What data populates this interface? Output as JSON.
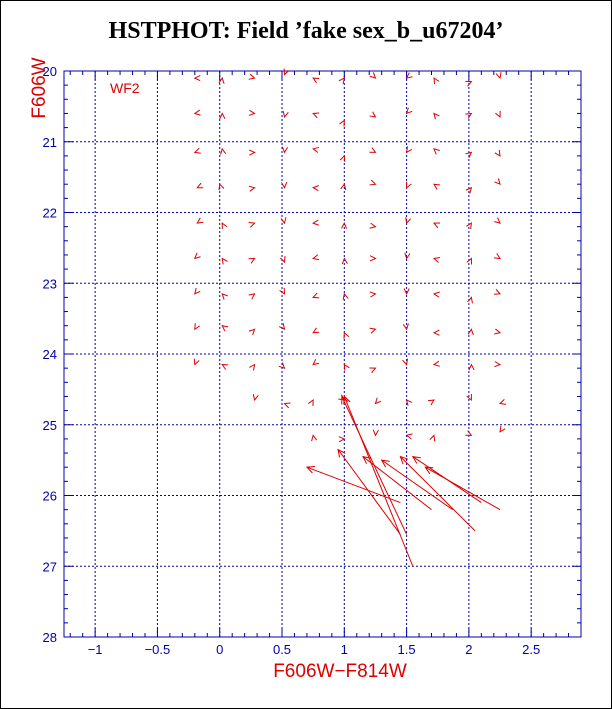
{
  "chart_data": {
    "type": "vector-plot",
    "title": "HSTPHOT: Field ’fake sex_b_u67204’",
    "xlabel": "F606W−F814W",
    "ylabel": "F606W",
    "panel_label": "WF2",
    "xlim": [
      -1.25,
      2.9
    ],
    "ylim": [
      28,
      20
    ],
    "y_axis_inverted": true,
    "x_ticks": [
      -1,
      -0.5,
      0,
      0.5,
      1,
      1.5,
      2,
      2.5
    ],
    "x_tick_labels": [
      "−1",
      "−0.5",
      "0",
      "0.5",
      "1",
      "1.5",
      "2",
      "2.5"
    ],
    "y_ticks": [
      20,
      21,
      22,
      23,
      24,
      25,
      26,
      27,
      28
    ],
    "y_tick_labels": [
      "20",
      "21",
      "22",
      "23",
      "24",
      "25",
      "26",
      "27",
      "28"
    ],
    "grid": true,
    "colors": {
      "axis": "#0000aa",
      "data": "#dd0000",
      "label": "#dd0000",
      "title": "#000000"
    },
    "short_vectors": [
      {
        "x": -0.2,
        "y": 20.1
      },
      {
        "x": 0.02,
        "y": 20.1
      },
      {
        "x": 0.28,
        "y": 20.1
      },
      {
        "x": 0.52,
        "y": 20.05
      },
      {
        "x": 0.75,
        "y": 20.1
      },
      {
        "x": 1.0,
        "y": 20.1
      },
      {
        "x": 1.25,
        "y": 20.1
      },
      {
        "x": 1.5,
        "y": 20.1
      },
      {
        "x": 1.72,
        "y": 20.1
      },
      {
        "x": 2.02,
        "y": 20.15
      },
      {
        "x": 2.25,
        "y": 20.1
      },
      {
        "x": -0.2,
        "y": 20.6
      },
      {
        "x": 0.02,
        "y": 20.6
      },
      {
        "x": 0.28,
        "y": 20.6
      },
      {
        "x": 0.52,
        "y": 20.65
      },
      {
        "x": 0.75,
        "y": 20.6
      },
      {
        "x": 1.0,
        "y": 20.7
      },
      {
        "x": 1.25,
        "y": 20.65
      },
      {
        "x": 1.5,
        "y": 20.6
      },
      {
        "x": 1.72,
        "y": 20.6
      },
      {
        "x": 2.02,
        "y": 20.6
      },
      {
        "x": 2.25,
        "y": 20.65
      },
      {
        "x": -0.2,
        "y": 21.15
      },
      {
        "x": 0.02,
        "y": 21.1
      },
      {
        "x": 0.28,
        "y": 21.15
      },
      {
        "x": 0.52,
        "y": 21.15
      },
      {
        "x": 0.75,
        "y": 21.1
      },
      {
        "x": 1.0,
        "y": 21.2
      },
      {
        "x": 1.25,
        "y": 21.15
      },
      {
        "x": 1.5,
        "y": 21.15
      },
      {
        "x": 1.72,
        "y": 21.1
      },
      {
        "x": 2.02,
        "y": 21.15
      },
      {
        "x": 2.25,
        "y": 21.2
      },
      {
        "x": -0.18,
        "y": 21.65
      },
      {
        "x": 0.0,
        "y": 21.6
      },
      {
        "x": 0.28,
        "y": 21.65
      },
      {
        "x": 0.52,
        "y": 21.65
      },
      {
        "x": 0.75,
        "y": 21.65
      },
      {
        "x": 1.0,
        "y": 21.6
      },
      {
        "x": 1.25,
        "y": 21.6
      },
      {
        "x": 1.5,
        "y": 21.65
      },
      {
        "x": 1.72,
        "y": 21.6
      },
      {
        "x": 2.02,
        "y": 21.65
      },
      {
        "x": 2.25,
        "y": 21.6
      },
      {
        "x": -0.18,
        "y": 22.15
      },
      {
        "x": 0.02,
        "y": 22.15
      },
      {
        "x": 0.28,
        "y": 22.15
      },
      {
        "x": 0.52,
        "y": 22.15
      },
      {
        "x": 0.75,
        "y": 22.15
      },
      {
        "x": 1.0,
        "y": 22.15
      },
      {
        "x": 1.25,
        "y": 22.2
      },
      {
        "x": 1.5,
        "y": 22.15
      },
      {
        "x": 1.72,
        "y": 22.15
      },
      {
        "x": 2.02,
        "y": 22.15
      },
      {
        "x": 2.25,
        "y": 22.15
      },
      {
        "x": -0.2,
        "y": 22.65
      },
      {
        "x": 0.02,
        "y": 22.65
      },
      {
        "x": 0.28,
        "y": 22.65
      },
      {
        "x": 0.52,
        "y": 22.7
      },
      {
        "x": 0.75,
        "y": 22.65
      },
      {
        "x": 1.0,
        "y": 22.65
      },
      {
        "x": 1.25,
        "y": 22.65
      },
      {
        "x": 1.5,
        "y": 22.65
      },
      {
        "x": 1.72,
        "y": 22.65
      },
      {
        "x": 2.02,
        "y": 22.65
      },
      {
        "x": 2.25,
        "y": 22.65
      },
      {
        "x": -0.2,
        "y": 23.15
      },
      {
        "x": 0.02,
        "y": 23.15
      },
      {
        "x": 0.28,
        "y": 23.15
      },
      {
        "x": 0.52,
        "y": 23.15
      },
      {
        "x": 0.75,
        "y": 23.2
      },
      {
        "x": 1.0,
        "y": 23.15
      },
      {
        "x": 1.25,
        "y": 23.15
      },
      {
        "x": 1.5,
        "y": 23.15
      },
      {
        "x": 1.72,
        "y": 23.15
      },
      {
        "x": 2.02,
        "y": 23.2
      },
      {
        "x": 2.25,
        "y": 23.15
      },
      {
        "x": -0.2,
        "y": 23.65
      },
      {
        "x": 0.02,
        "y": 23.6
      },
      {
        "x": 0.28,
        "y": 23.65
      },
      {
        "x": 0.52,
        "y": 23.65
      },
      {
        "x": 0.75,
        "y": 23.7
      },
      {
        "x": 1.0,
        "y": 23.7
      },
      {
        "x": 1.25,
        "y": 23.65
      },
      {
        "x": 1.5,
        "y": 23.65
      },
      {
        "x": 1.72,
        "y": 23.7
      },
      {
        "x": 2.02,
        "y": 23.65
      },
      {
        "x": 2.25,
        "y": 23.7
      },
      {
        "x": -0.2,
        "y": 24.15
      },
      {
        "x": 0.02,
        "y": 24.15
      },
      {
        "x": 0.28,
        "y": 24.15
      },
      {
        "x": 0.52,
        "y": 24.2
      },
      {
        "x": 0.75,
        "y": 24.15
      },
      {
        "x": 1.0,
        "y": 24.15
      },
      {
        "x": 1.25,
        "y": 24.2
      },
      {
        "x": 1.5,
        "y": 24.15
      },
      {
        "x": 1.72,
        "y": 24.15
      },
      {
        "x": 2.02,
        "y": 24.15
      },
      {
        "x": 2.25,
        "y": 24.15
      },
      {
        "x": 0.28,
        "y": 24.65
      },
      {
        "x": 0.52,
        "y": 24.7
      },
      {
        "x": 0.75,
        "y": 24.65
      },
      {
        "x": 1.0,
        "y": 24.65
      },
      {
        "x": 1.25,
        "y": 24.7
      },
      {
        "x": 1.5,
        "y": 24.65
      },
      {
        "x": 1.72,
        "y": 24.65
      },
      {
        "x": 2.02,
        "y": 24.65
      },
      {
        "x": 2.25,
        "y": 24.7
      },
      {
        "x": 0.75,
        "y": 25.15
      },
      {
        "x": 1.0,
        "y": 25.2
      },
      {
        "x": 1.25,
        "y": 25.15
      },
      {
        "x": 1.5,
        "y": 25.15
      },
      {
        "x": 1.72,
        "y": 25.15
      },
      {
        "x": 2.02,
        "y": 25.15
      },
      {
        "x": 2.25,
        "y": 25.1
      }
    ],
    "long_vectors": [
      {
        "x0": 1.5,
        "y0": 26.55,
        "x1": 0.98,
        "y1": 24.6
      },
      {
        "x0": 1.55,
        "y0": 27.0,
        "x1": 1.0,
        "y1": 24.6
      },
      {
        "x0": 1.45,
        "y0": 26.1,
        "x1": 0.7,
        "y1": 25.6
      },
      {
        "x0": 1.45,
        "y0": 26.55,
        "x1": 0.95,
        "y1": 25.35
      },
      {
        "x0": 1.7,
        "y0": 26.2,
        "x1": 1.15,
        "y1": 25.45
      },
      {
        "x0": 1.87,
        "y0": 26.2,
        "x1": 1.3,
        "y1": 25.5
      },
      {
        "x0": 2.05,
        "y0": 26.5,
        "x1": 1.45,
        "y1": 25.45
      },
      {
        "x0": 2.25,
        "y0": 26.2,
        "x1": 1.65,
        "y1": 25.6
      },
      {
        "x0": 2.1,
        "y0": 26.1,
        "x1": 1.55,
        "y1": 25.45
      }
    ]
  }
}
